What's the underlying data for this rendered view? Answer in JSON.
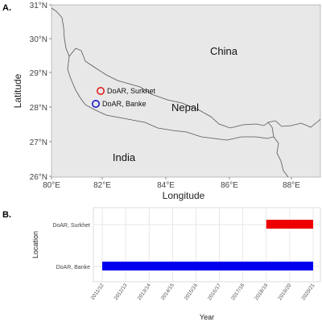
{
  "panel_a": {
    "letter": "A.",
    "xlabel": "Longitude",
    "ylabel": "Latitude",
    "lon_ticks": [
      "80°E",
      "82°E",
      "84°E",
      "86°E",
      "88°E"
    ],
    "lat_ticks": [
      "31°N",
      "30°N",
      "29°N",
      "28°N",
      "27°N",
      "26°N"
    ],
    "countries": [
      {
        "name": "China",
        "lon": 86.8,
        "lat": 29.7
      },
      {
        "name": "Nepal",
        "lon": 84.4,
        "lat": 27.95
      },
      {
        "name": "India",
        "lon": 82.9,
        "lat": 26.6
      }
    ],
    "sites": [
      {
        "name": "DoAR, Surkhet",
        "lon": 81.75,
        "lat": 28.5,
        "color": "#e02020"
      },
      {
        "name": "DoAR, Banke",
        "lon": 81.6,
        "lat": 28.1,
        "color": "#1a1ad0"
      }
    ]
  },
  "panel_b": {
    "letter": "B.",
    "xlabel": "Year",
    "ylabel": "Location",
    "years": [
      "2011/12",
      "2012/13",
      "2013/14",
      "2014/15",
      "2015/16",
      "2016/17",
      "2017/18",
      "2018/19",
      "2019/20",
      "2020/21"
    ],
    "bars": [
      {
        "location": "DoAR, Surkhet",
        "start_index": 7,
        "end_index": 9,
        "color": "#ee0000"
      },
      {
        "location": "DoAR, Banke",
        "start_index": 0,
        "end_index": 9,
        "color": "#0000ee"
      }
    ]
  }
}
